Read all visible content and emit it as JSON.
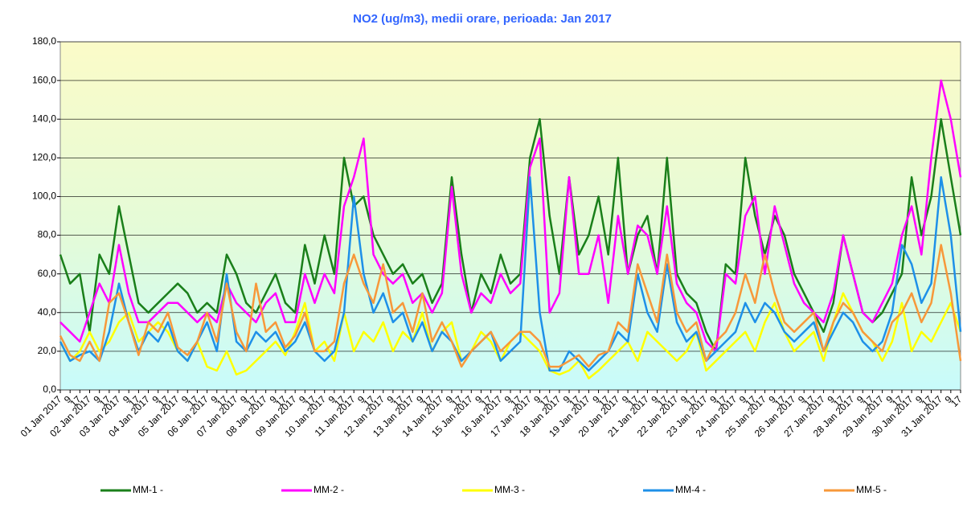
{
  "chart_data": {
    "type": "line",
    "title": "NO2 (ug/m3), medii orare, perioada:  Jan 2017",
    "categories": [
      "01 Jan 2017",
      "9",
      "17",
      "02 Jan 2017",
      "9",
      "17",
      "03 Jan 2017",
      "9",
      "17",
      "04 Jan 2017",
      "9",
      "17",
      "05 Jan 2017",
      "9",
      "17",
      "06 Jan 2017",
      "9",
      "17",
      "07 Jan 2017",
      "9",
      "17",
      "08 Jan 2017",
      "9",
      "17",
      "09 Jan 2017",
      "9",
      "17",
      "10 Jan 2017",
      "9",
      "17",
      "11 Jan 2017",
      "9",
      "17",
      "12 Jan 2017",
      "9",
      "17",
      "13 Jan 2017",
      "9",
      "17",
      "14 Jan 2017",
      "9",
      "17",
      "15 Jan 2017",
      "9",
      "17",
      "16 Jan 2017",
      "9",
      "17",
      "17 Jan 2017",
      "9",
      "17",
      "18 Jan 2017",
      "9",
      "17",
      "19 Jan 2017",
      "9",
      "17",
      "20 Jan 2017",
      "9",
      "17",
      "21 Jan 2017",
      "9",
      "17",
      "22 Jan 2017",
      "9",
      "17",
      "23 Jan 2017",
      "9",
      "17",
      "24 Jan 2017",
      "9",
      "17",
      "25 Jan 2017",
      "9",
      "17",
      "26 Jan 2017",
      "9",
      "17",
      "27 Jan 2017",
      "9",
      "17",
      "28 Jan 2017",
      "9",
      "17",
      "29 Jan 2017",
      "9",
      "17",
      "30 Jan 2017",
      "9",
      "17",
      "31 Jan 2017",
      "9",
      "17"
    ],
    "series": [
      {
        "name": "MM-1 -",
        "color": "#1a7f1a",
        "values": [
          70,
          55,
          60,
          30,
          70,
          60,
          95,
          70,
          45,
          40,
          45,
          50,
          55,
          50,
          40,
          45,
          40,
          70,
          60,
          45,
          40,
          50,
          60,
          45,
          40,
          75,
          55,
          80,
          60,
          120,
          95,
          100,
          80,
          70,
          60,
          65,
          55,
          60,
          45,
          55,
          110,
          70,
          40,
          60,
          50,
          70,
          55,
          60,
          120,
          140,
          90,
          60,
          110,
          70,
          80,
          100,
          70,
          120,
          60,
          80,
          90,
          60,
          120,
          60,
          50,
          45,
          30,
          20,
          65,
          60,
          120,
          90,
          70,
          90,
          80,
          60,
          50,
          40,
          30,
          45,
          80,
          60,
          40,
          35,
          40,
          50,
          60,
          110,
          80,
          100,
          140,
          110,
          80
        ]
      },
      {
        "name": "MM-2 -",
        "color": "#ff00ff",
        "values": [
          35,
          30,
          25,
          40,
          55,
          45,
          75,
          50,
          35,
          35,
          40,
          45,
          45,
          40,
          35,
          40,
          35,
          55,
          45,
          40,
          35,
          45,
          50,
          35,
          35,
          60,
          45,
          60,
          50,
          95,
          110,
          130,
          70,
          60,
          55,
          60,
          45,
          50,
          40,
          50,
          105,
          60,
          40,
          50,
          45,
          60,
          50,
          55,
          115,
          130,
          40,
          50,
          110,
          60,
          60,
          80,
          45,
          90,
          60,
          85,
          80,
          60,
          95,
          55,
          45,
          40,
          25,
          20,
          60,
          55,
          90,
          100,
          60,
          95,
          75,
          55,
          45,
          40,
          35,
          50,
          80,
          60,
          40,
          35,
          45,
          55,
          80,
          95,
          70,
          120,
          160,
          140,
          110
        ]
      },
      {
        "name": "MM-3 -",
        "color": "#ffff00",
        "values": [
          25,
          15,
          20,
          30,
          20,
          25,
          35,
          40,
          25,
          30,
          35,
          30,
          20,
          15,
          25,
          12,
          10,
          20,
          8,
          10,
          15,
          20,
          25,
          18,
          30,
          45,
          20,
          25,
          15,
          40,
          20,
          30,
          25,
          35,
          20,
          30,
          25,
          40,
          20,
          30,
          35,
          15,
          20,
          30,
          25,
          15,
          25,
          30,
          25,
          20,
          10,
          8,
          10,
          15,
          6,
          10,
          15,
          20,
          25,
          15,
          30,
          25,
          20,
          15,
          20,
          30,
          10,
          15,
          20,
          25,
          30,
          20,
          35,
          45,
          30,
          20,
          25,
          30,
          15,
          35,
          50,
          40,
          30,
          25,
          15,
          25,
          45,
          20,
          30,
          25,
          35,
          45,
          30
        ]
      },
      {
        "name": "MM-4 -",
        "color": "#1e90e8",
        "values": [
          25,
          15,
          18,
          20,
          15,
          30,
          55,
          35,
          20,
          30,
          25,
          35,
          20,
          15,
          25,
          35,
          20,
          60,
          25,
          20,
          30,
          25,
          30,
          20,
          25,
          35,
          20,
          15,
          20,
          40,
          100,
          60,
          40,
          50,
          35,
          40,
          25,
          35,
          20,
          30,
          25,
          15,
          20,
          25,
          30,
          15,
          20,
          25,
          110,
          40,
          10,
          10,
          20,
          15,
          10,
          15,
          20,
          30,
          25,
          60,
          40,
          30,
          65,
          35,
          25,
          30,
          15,
          20,
          25,
          30,
          45,
          35,
          45,
          40,
          30,
          25,
          30,
          35,
          20,
          30,
          40,
          35,
          25,
          20,
          25,
          40,
          75,
          65,
          45,
          55,
          110,
          80,
          30
        ]
      },
      {
        "name": "MM-5 -",
        "color": "#f7983a",
        "values": [
          28,
          18,
          15,
          25,
          15,
          45,
          50,
          35,
          18,
          35,
          30,
          40,
          22,
          18,
          25,
          40,
          25,
          55,
          30,
          20,
          55,
          30,
          35,
          22,
          28,
          40,
          20,
          20,
          25,
          55,
          70,
          55,
          45,
          65,
          40,
          45,
          30,
          50,
          25,
          35,
          25,
          12,
          20,
          25,
          30,
          20,
          25,
          30,
          30,
          25,
          12,
          12,
          15,
          18,
          12,
          18,
          20,
          35,
          30,
          65,
          50,
          35,
          70,
          40,
          30,
          35,
          15,
          25,
          30,
          40,
          60,
          45,
          70,
          50,
          35,
          30,
          35,
          40,
          20,
          35,
          45,
          40,
          30,
          25,
          20,
          35,
          40,
          50,
          35,
          45,
          75,
          50,
          15
        ]
      }
    ],
    "ylim": [
      0,
      180
    ],
    "yticks": [
      {
        "value": 0,
        "label": "0,0"
      },
      {
        "value": 20,
        "label": "20,0"
      },
      {
        "value": 40,
        "label": "40,0"
      },
      {
        "value": 60,
        "label": "60,0"
      },
      {
        "value": 80,
        "label": "80,0"
      },
      {
        "value": 100,
        "label": "100,0"
      },
      {
        "value": 120,
        "label": "120,0"
      },
      {
        "value": 140,
        "label": "140,0"
      },
      {
        "value": 160,
        "label": "160,0"
      },
      {
        "value": 180,
        "label": "180,0"
      }
    ],
    "grid": true
  }
}
